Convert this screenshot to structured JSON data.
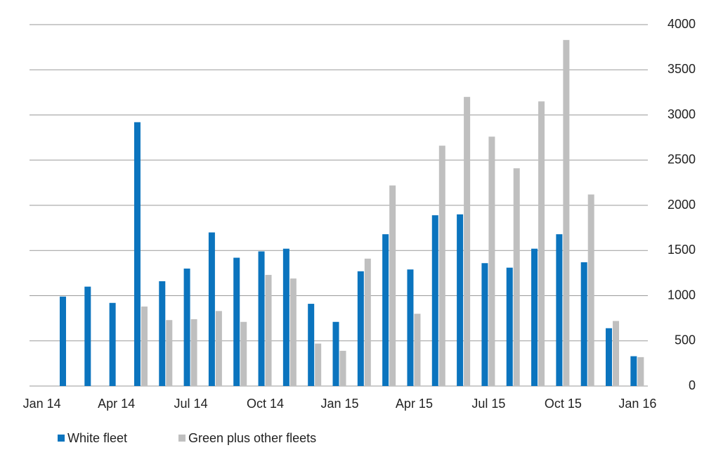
{
  "chart_data": {
    "type": "bar",
    "categories": [
      "Jan 14",
      null,
      null,
      "Apr 14",
      null,
      null,
      "Jul 14",
      null,
      null,
      "Oct 14",
      null,
      null,
      "Jan 15",
      null,
      null,
      "Apr 15",
      null,
      null,
      "Jul 15",
      null,
      null,
      "Oct 15",
      null,
      null,
      "Jan 16"
    ],
    "series": [
      {
        "name": "White fleet",
        "color": "#0b74be",
        "values": [
          null,
          990,
          1100,
          920,
          2920,
          1160,
          1300,
          1700,
          1420,
          1490,
          1520,
          910,
          710,
          1270,
          1680,
          1290,
          1890,
          1900,
          1360,
          1310,
          1520,
          1680,
          1370,
          640,
          330
        ]
      },
      {
        "name": "Green plus other fleets",
        "color": "#bfbfbf",
        "values": [
          null,
          null,
          null,
          null,
          880,
          730,
          740,
          830,
          710,
          1230,
          1190,
          470,
          390,
          1410,
          2220,
          800,
          2660,
          3200,
          2760,
          2410,
          3150,
          3830,
          2120,
          720,
          320
        ]
      }
    ],
    "ylim": [
      0,
      4000
    ],
    "yticks": [
      0,
      500,
      1000,
      1500,
      2000,
      2500,
      3000,
      3500,
      4000
    ],
    "grid": true,
    "y_axis_side": "right",
    "legend": "bottom-left"
  }
}
